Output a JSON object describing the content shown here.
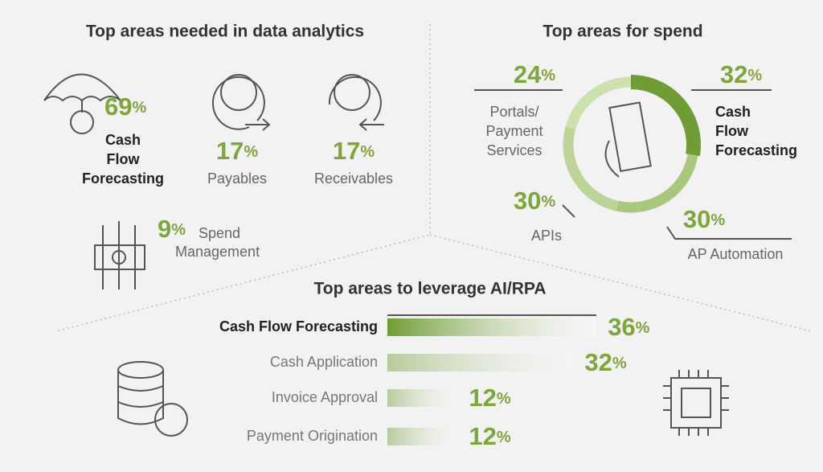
{
  "analytics": {
    "title": "Top areas needed in data analytics",
    "unit": "%",
    "items": [
      {
        "value": 69,
        "label": [
          "Cash",
          "Flow",
          "Forecasting"
        ]
      },
      {
        "value": 17,
        "label": [
          "Payables"
        ]
      },
      {
        "value": 17,
        "label": [
          "Receivables"
        ]
      },
      {
        "value": 9,
        "label": [
          "Spend",
          "Management"
        ]
      }
    ]
  },
  "spend": {
    "type": "donut",
    "title": "Top areas for spend",
    "unit": "%",
    "items": [
      {
        "value": 32,
        "label": [
          "Cash",
          "Flow",
          "Forecasting"
        ],
        "color": "#6f9c34"
      },
      {
        "value": 30,
        "label": [
          "AP Automation"
        ],
        "color": "#aac77e"
      },
      {
        "value": 30,
        "label": [
          "APIs"
        ],
        "color": "#bcd498"
      },
      {
        "value": 24,
        "label": [
          "Portals/",
          "Payment",
          "Services"
        ],
        "color": "#cde0b0"
      }
    ]
  },
  "ai": {
    "type": "bar",
    "title": "Top areas to leverage AI/RPA",
    "unit": "%",
    "color": "#6f9c34",
    "items": [
      {
        "label": "Cash Flow Forecasting",
        "value": 36
      },
      {
        "label": "Cash Application",
        "value": 32
      },
      {
        "label": "Invoice Approval",
        "value": 12
      },
      {
        "label": "Payment Origination",
        "value": 12
      }
    ]
  }
}
